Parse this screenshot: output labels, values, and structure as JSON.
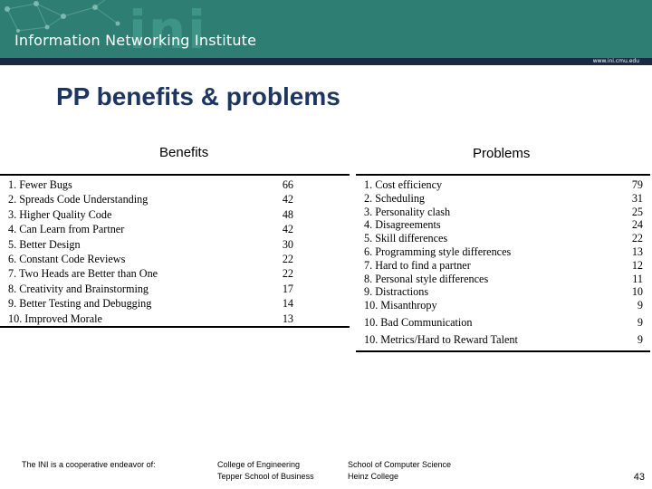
{
  "header": {
    "wordmark": "ini",
    "title": "Information Networking Institute",
    "url": "www.ini.cmu.edu"
  },
  "slide": {
    "title": "PP benefits & problems",
    "page_number": "43"
  },
  "benefits": {
    "label": "Benefits",
    "rows": [
      {
        "label": "1. Fewer Bugs",
        "value": "66"
      },
      {
        "label": "2. Spreads Code Understanding",
        "value": "42"
      },
      {
        "label": "3. Higher Quality Code",
        "value": "48"
      },
      {
        "label": "4. Can Learn from Partner",
        "value": "42"
      },
      {
        "label": "5. Better Design",
        "value": "30"
      },
      {
        "label": "6. Constant Code Reviews",
        "value": "22"
      },
      {
        "label": "7. Two Heads are Better than One",
        "value": "22"
      },
      {
        "label": "8. Creativity and Brainstorming",
        "value": "17"
      },
      {
        "label": "9. Better Testing and Debugging",
        "value": "14"
      },
      {
        "label": "10. Improved Morale",
        "value": "13"
      }
    ]
  },
  "problems": {
    "label": "Problems",
    "rows": [
      {
        "label": "1. Cost efficiency",
        "value": "79"
      },
      {
        "label": "2. Scheduling",
        "value": "31"
      },
      {
        "label": "3. Personality clash",
        "value": "25"
      },
      {
        "label": "4. Disagreements",
        "value": "24"
      },
      {
        "label": "5. Skill differences",
        "value": "22"
      },
      {
        "label": "6. Programming style differences",
        "value": "13"
      },
      {
        "label": "7. Hard to find a partner",
        "value": "12"
      },
      {
        "label": "8. Personal style differences",
        "value": "11"
      },
      {
        "label": "9. Distractions",
        "value": "10"
      },
      {
        "label": "10. Misanthropy",
        "value": "9"
      },
      {
        "label": "10. Bad Communication",
        "value": "9"
      },
      {
        "label": "10. Metrics/Hard to Reward Talent",
        "value": "9"
      }
    ]
  },
  "footer": {
    "cooperative": "The INI is a cooperative endeavor of:",
    "college_engineering": "College of Engineering",
    "tepper": "Tepper School of Business",
    "scs": "School of Computer Science",
    "heinz": "Heinz College"
  },
  "colors": {
    "header_bg": "#2f7e74",
    "header_bar": "#1a2a44",
    "title": "#1d3561"
  }
}
